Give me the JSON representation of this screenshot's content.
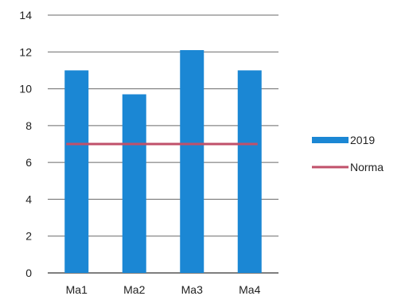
{
  "chart_data": {
    "type": "bar",
    "categories": [
      "Ma1",
      "Ma2",
      "Ma3",
      "Ma4"
    ],
    "series": [
      {
        "name": "2019",
        "kind": "bar",
        "values": [
          11,
          9.7,
          12.1,
          11
        ],
        "color": "#1b87d4"
      },
      {
        "name": "Norma",
        "kind": "line",
        "values": [
          7,
          7,
          7,
          7
        ],
        "color": "#c0506a"
      }
    ],
    "ylim": [
      0,
      14
    ],
    "yticks": [
      0,
      2,
      4,
      6,
      8,
      10,
      12,
      14
    ],
    "grid": true,
    "legend": "right"
  }
}
